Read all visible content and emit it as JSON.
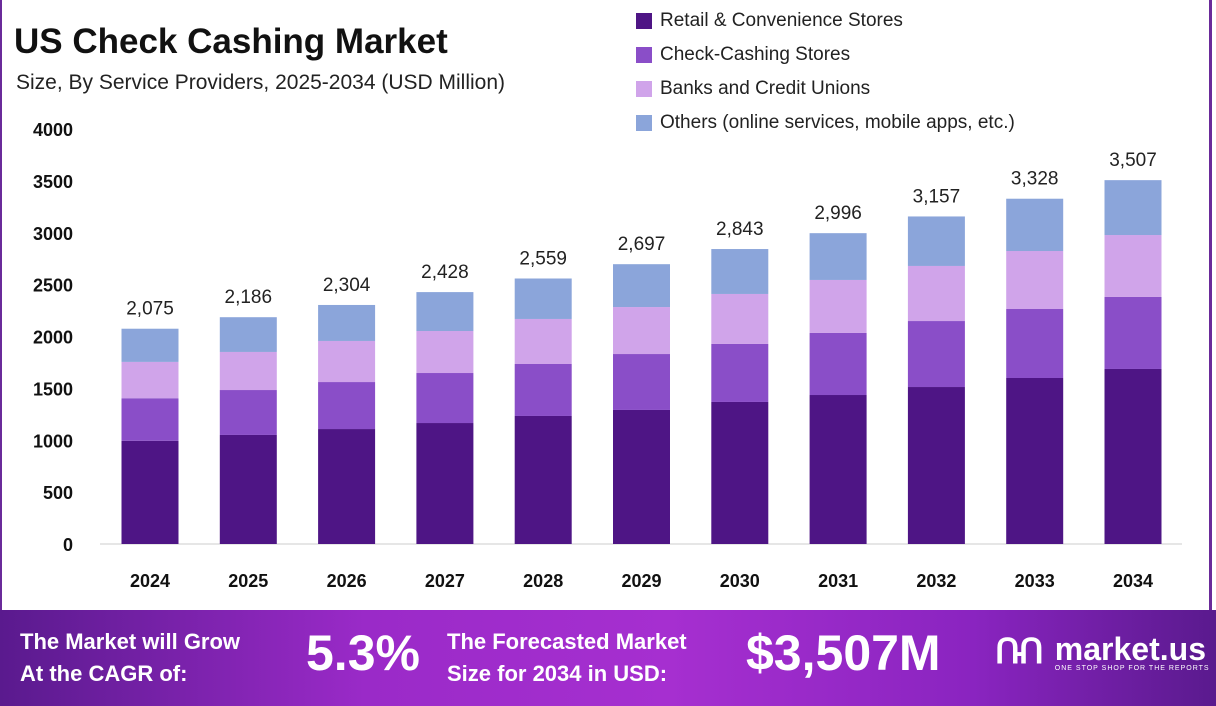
{
  "chart_data": {
    "type": "bar",
    "stacked": true,
    "title": "US Check Cashing Market",
    "subtitle": "Size, By Service Providers, 2025-2034 (USD Million)",
    "categories": [
      "2024",
      "2025",
      "2026",
      "2027",
      "2028",
      "2029",
      "2030",
      "2031",
      "2032",
      "2033",
      "2034"
    ],
    "series": [
      {
        "name": "Retail & Convenience Stores",
        "color": "#4e1585",
        "values": [
          995,
          1051,
          1108,
          1166,
          1234,
          1292,
          1369,
          1436,
          1513,
          1600,
          1687
        ]
      },
      {
        "name": "Check-Cashing Stores",
        "color": "#8a4ec8",
        "values": [
          410,
          433,
          453,
          482,
          501,
          539,
          559,
          598,
          636,
          665,
          694
        ]
      },
      {
        "name": "Banks and Credit Unions",
        "color": "#d0a4ea",
        "values": [
          350,
          367,
          396,
          405,
          434,
          453,
          482,
          511,
          531,
          559,
          597
        ]
      },
      {
        "name": "Others (online services, mobile apps, etc.)",
        "color": "#8ba5da",
        "values": [
          320,
          335,
          347,
          375,
          390,
          413,
          433,
          451,
          477,
          504,
          529
        ]
      }
    ],
    "totals": [
      "2,075",
      "2,186",
      "2,304",
      "2,428",
      "2,559",
      "2,697",
      "2,843",
      "2,996",
      "3,157",
      "3,328",
      "3,507"
    ],
    "yticks": [
      "0",
      "500",
      "1000",
      "1500",
      "2000",
      "2500",
      "3000",
      "3500",
      "4000"
    ],
    "ylim": [
      0,
      4000
    ],
    "grid": false,
    "legend_position": "top-right"
  },
  "footer": {
    "cagr_label_1": "The Market will Grow",
    "cagr_label_2": "At the CAGR of:",
    "cagr_value": "5.3%",
    "forecast_label_1": "The Forecasted Market",
    "forecast_label_2": "Size for 2034 in USD:",
    "forecast_value": "$3,507M",
    "logo_name": "market.us",
    "logo_tagline": "ONE STOP SHOP FOR THE REPORTS"
  }
}
